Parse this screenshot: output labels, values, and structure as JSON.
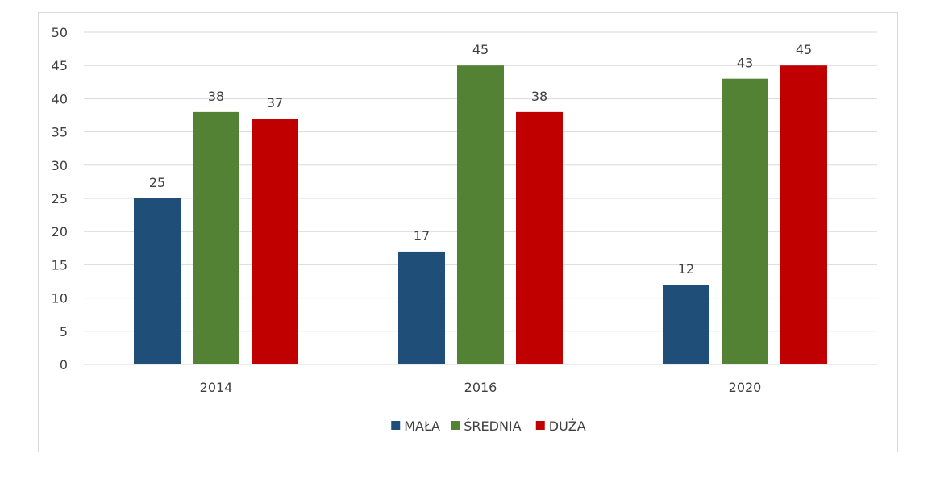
{
  "chart_data": {
    "type": "bar",
    "categories": [
      "2014",
      "2016",
      "2020"
    ],
    "series": [
      {
        "name": "MAŁA",
        "values": [
          25,
          17,
          12
        ],
        "color": "#1f4e79"
      },
      {
        "name": "ŚREDNIA",
        "values": [
          38,
          45,
          43
        ],
        "color": "#548235"
      },
      {
        "name": "DUŻA",
        "values": [
          37,
          38,
          45
        ],
        "color": "#c00000"
      }
    ],
    "ylim": [
      0,
      50
    ],
    "yticks": [
      0,
      5,
      10,
      15,
      20,
      25,
      30,
      35,
      40,
      45,
      50
    ],
    "grid": true,
    "data_labels": true,
    "legend_position": "bottom",
    "title": "",
    "xlabel": "",
    "ylabel": ""
  }
}
